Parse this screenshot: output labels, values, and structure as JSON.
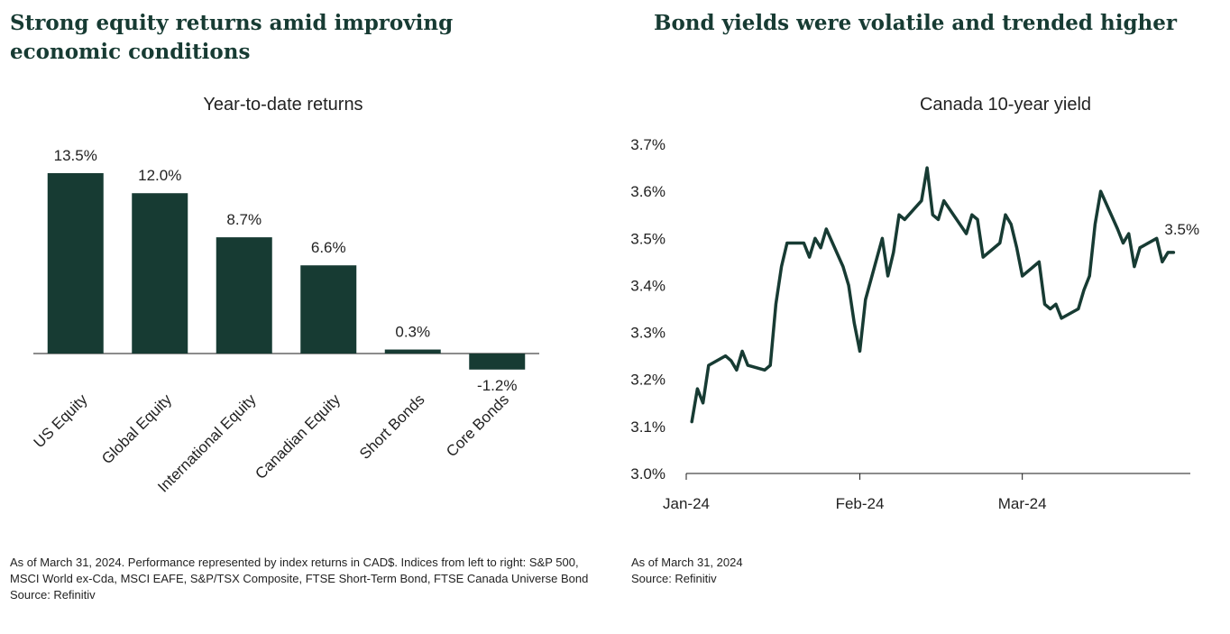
{
  "palette": {
    "accent": "#173b33",
    "text": "#222222",
    "axis": "#1a1a1a"
  },
  "left": {
    "headline": "Strong equity returns amid improving economic conditions",
    "note_line": "As of March 31, 2024. Performance represented by index returns in CAD$. Indices from left to right: S&P 500, MSCI World ex-Cda, MSCI EAFE, S&P/TSX Composite, FTSE Short-Term Bond, FTSE Canada Universe Bond",
    "source": "Source: Refinitiv"
  },
  "right": {
    "headline": "Bond yields were volatile and trended higher",
    "note_line": "As of March 31, 2024",
    "source": "Source: Refinitiv"
  },
  "chart_data": [
    {
      "type": "bar",
      "title": "Year-to-date returns",
      "categories": [
        "US Equity",
        "Global Equity",
        "International Equity",
        "Canadian Equity",
        "Short Bonds",
        "Core Bonds"
      ],
      "values": [
        13.5,
        12.0,
        8.7,
        6.6,
        0.3,
        -1.2
      ],
      "data_labels": [
        "13.5%",
        "12.0%",
        "8.7%",
        "6.6%",
        "0.3%",
        "-1.2%"
      ],
      "ylim": [
        -1.2,
        13.5
      ],
      "grid": false,
      "legend": "none",
      "color": "#173b33"
    },
    {
      "type": "line",
      "title": "Canada 10-year yield",
      "ylim": [
        3.0,
        3.7
      ],
      "y_ticks": [
        3.0,
        3.1,
        3.2,
        3.3,
        3.4,
        3.5,
        3.6,
        3.7
      ],
      "y_tick_labels": [
        "3.0%",
        "3.1%",
        "3.2%",
        "3.3%",
        "3.4%",
        "3.5%",
        "3.6%",
        "3.7%"
      ],
      "x_ticks": [
        "2024-01-01",
        "2024-02-01",
        "2024-03-01"
      ],
      "x_tick_labels": [
        "Jan-24",
        "Feb-24",
        "Mar-24"
      ],
      "x_range": [
        "2024-01-01",
        "2024-03-31"
      ],
      "grid": false,
      "legend": "none",
      "end_label": "3.5%",
      "color": "#173b33",
      "series": [
        {
          "x": [
            "2024-01-02",
            "2024-01-03",
            "2024-01-04",
            "2024-01-05",
            "2024-01-08",
            "2024-01-09",
            "2024-01-10",
            "2024-01-11",
            "2024-01-12",
            "2024-01-15",
            "2024-01-16",
            "2024-01-17",
            "2024-01-18",
            "2024-01-19",
            "2024-01-22",
            "2024-01-23",
            "2024-01-24",
            "2024-01-25",
            "2024-01-26",
            "2024-01-29",
            "2024-01-30",
            "2024-01-31",
            "2024-02-01",
            "2024-02-02",
            "2024-02-05",
            "2024-02-06",
            "2024-02-07",
            "2024-02-08",
            "2024-02-09",
            "2024-02-12",
            "2024-02-13",
            "2024-02-14",
            "2024-02-15",
            "2024-02-16",
            "2024-02-20",
            "2024-02-21",
            "2024-02-22",
            "2024-02-23",
            "2024-02-26",
            "2024-02-27",
            "2024-02-28",
            "2024-02-29",
            "2024-03-01",
            "2024-03-04",
            "2024-03-05",
            "2024-03-06",
            "2024-03-07",
            "2024-03-08",
            "2024-03-11",
            "2024-03-12",
            "2024-03-13",
            "2024-03-14",
            "2024-03-15",
            "2024-03-18",
            "2024-03-19",
            "2024-03-20",
            "2024-03-21",
            "2024-03-22",
            "2024-03-25",
            "2024-03-26",
            "2024-03-27",
            "2024-03-28"
          ],
          "y": [
            3.11,
            3.18,
            3.15,
            3.23,
            3.25,
            3.24,
            3.22,
            3.26,
            3.23,
            3.22,
            3.23,
            3.36,
            3.44,
            3.49,
            3.49,
            3.46,
            3.5,
            3.48,
            3.52,
            3.44,
            3.4,
            3.32,
            3.26,
            3.37,
            3.5,
            3.42,
            3.47,
            3.55,
            3.54,
            3.58,
            3.65,
            3.55,
            3.54,
            3.58,
            3.51,
            3.55,
            3.54,
            3.46,
            3.49,
            3.55,
            3.53,
            3.48,
            3.42,
            3.45,
            3.36,
            3.35,
            3.36,
            3.33,
            3.35,
            3.39,
            3.42,
            3.53,
            3.6,
            3.52,
            3.49,
            3.51,
            3.44,
            3.48,
            3.5,
            3.45,
            3.47,
            3.47
          ]
        }
      ]
    }
  ]
}
